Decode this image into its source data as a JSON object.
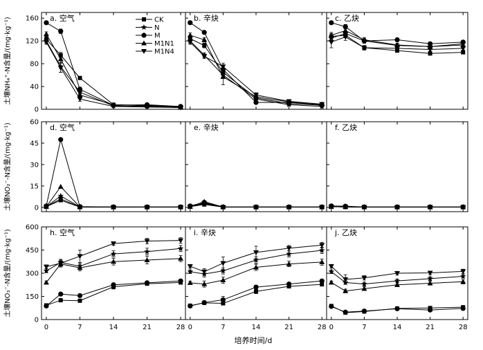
{
  "figure": {
    "xlabel": "培养时间/d",
    "x_ticks": [
      0,
      7,
      14,
      21,
      28
    ]
  },
  "legend": {
    "entries": [
      {
        "key": "CK",
        "label": "CK",
        "marker": "square"
      },
      {
        "key": "N",
        "label": "N",
        "marker": "star"
      },
      {
        "key": "M",
        "label": "M",
        "marker": "circle"
      },
      {
        "key": "M1N1",
        "label": "M1N1",
        "marker": "triangle-up"
      },
      {
        "key": "M1N4",
        "label": "M1N4",
        "marker": "triangle-down"
      }
    ]
  },
  "rows": [
    {
      "ylabel": "土壤NH₄⁺-N含量/(mg·kg⁻¹)",
      "y_ticks": [
        0,
        40,
        80,
        120,
        160
      ],
      "ylim": [
        0,
        170
      ]
    },
    {
      "ylabel": "土壤NO₂⁻-N含量/(mg·kg⁻¹)",
      "y_ticks": [
        0,
        15,
        30,
        45,
        60
      ],
      "ylim": [
        -3,
        60
      ]
    },
    {
      "ylabel": "土壤NO₃⁻-N含量/(mg·kg⁻¹)",
      "y_ticks": [
        0,
        150,
        300,
        450,
        600
      ],
      "ylim": [
        0,
        600
      ]
    }
  ],
  "chart_data": [
    {
      "type": "line",
      "panel": "a",
      "title": "a. 空气",
      "row": 0,
      "col": 0,
      "x": [
        0,
        3,
        7,
        14,
        21,
        28
      ],
      "ylim": [
        0,
        170
      ],
      "series": [
        {
          "name": "CK",
          "values": [
            123,
            95,
            55,
            8,
            6,
            3
          ],
          "err": [
            4,
            5,
            2,
            1,
            1,
            1
          ]
        },
        {
          "name": "N",
          "values": [
            120,
            75,
            30,
            6,
            5,
            3
          ],
          "err": [
            4,
            10,
            8,
            1,
            1,
            1
          ]
        },
        {
          "name": "M",
          "values": [
            152,
            137,
            35,
            7,
            8,
            5
          ],
          "err": [
            3,
            4,
            4,
            1,
            1,
            1
          ]
        },
        {
          "name": "M1N1",
          "values": [
            132,
            88,
            25,
            8,
            7,
            4
          ],
          "err": [
            4,
            6,
            4,
            1,
            1,
            1
          ]
        },
        {
          "name": "M1N4",
          "values": [
            118,
            73,
            18,
            5,
            4,
            3
          ],
          "err": [
            4,
            8,
            4,
            1,
            1,
            1
          ]
        }
      ]
    },
    {
      "type": "line",
      "panel": "b",
      "title": "b. 辛炔",
      "row": 0,
      "col": 1,
      "x": [
        0,
        3,
        7,
        14,
        21,
        28
      ],
      "ylim": [
        0,
        170
      ],
      "series": [
        {
          "name": "CK",
          "values": [
            124,
            112,
            65,
            20,
            10,
            7
          ],
          "err": [
            4,
            4,
            6,
            2,
            1,
            1
          ]
        },
        {
          "name": "N",
          "values": [
            120,
            95,
            60,
            18,
            8,
            5
          ],
          "err": [
            4,
            4,
            6,
            2,
            1,
            1
          ]
        },
        {
          "name": "M",
          "values": [
            152,
            135,
            70,
            12,
            12,
            8
          ],
          "err": [
            3,
            3,
            6,
            2,
            2,
            1
          ]
        },
        {
          "name": "M1N1",
          "values": [
            130,
            122,
            57,
            22,
            13,
            9
          ],
          "err": [
            4,
            4,
            14,
            4,
            2,
            1
          ]
        },
        {
          "name": "M1N4",
          "values": [
            118,
            93,
            75,
            25,
            14,
            9
          ],
          "err": [
            4,
            4,
            6,
            4,
            2,
            1
          ]
        }
      ]
    },
    {
      "type": "line",
      "panel": "c",
      "title": "c. 乙炔",
      "row": 0,
      "col": 2,
      "x": [
        0,
        3,
        7,
        14,
        21,
        28
      ],
      "ylim": [
        0,
        170
      ],
      "series": [
        {
          "name": "CK",
          "values": [
            128,
            130,
            108,
            103,
            98,
            100
          ],
          "err": [
            5,
            4,
            3,
            3,
            3,
            3
          ]
        },
        {
          "name": "N",
          "values": [
            125,
            133,
            120,
            112,
            110,
            115
          ],
          "err": [
            5,
            4,
            4,
            3,
            3,
            3
          ]
        },
        {
          "name": "M",
          "values": [
            152,
            145,
            120,
            122,
            115,
            118
          ],
          "err": [
            3,
            4,
            4,
            3,
            3,
            3
          ]
        },
        {
          "name": "M1N1",
          "values": [
            130,
            138,
            122,
            113,
            110,
            113
          ],
          "err": [
            5,
            4,
            4,
            3,
            3,
            3
          ]
        },
        {
          "name": "M1N4",
          "values": [
            118,
            127,
            108,
            107,
            105,
            107
          ],
          "err": [
            10,
            6,
            4,
            3,
            3,
            3
          ]
        }
      ]
    },
    {
      "type": "line",
      "panel": "d",
      "title": "d. 空气",
      "row": 1,
      "col": 0,
      "x": [
        0,
        3,
        7,
        14,
        21,
        28
      ],
      "ylim": [
        -3,
        60
      ],
      "series": [
        {
          "name": "CK",
          "values": [
            0.5,
            5,
            0.2,
            0.2,
            0.2,
            0.2
          ],
          "err": [
            0.3,
            0.5,
            0.2,
            0.1,
            0.1,
            0.1
          ]
        },
        {
          "name": "N",
          "values": [
            0.5,
            8,
            0.3,
            0.2,
            0.2,
            0.2
          ],
          "err": [
            0.3,
            0.5,
            0.2,
            0.1,
            0.1,
            0.1
          ]
        },
        {
          "name": "M",
          "values": [
            1,
            47.5,
            0.5,
            0.3,
            0.3,
            0.3
          ],
          "err": [
            0.5,
            0.7,
            0.2,
            0.1,
            0.1,
            0.1
          ]
        },
        {
          "name": "M1N1",
          "values": [
            0.5,
            14.5,
            0.3,
            0.2,
            0.2,
            0.2
          ],
          "err": [
            0.3,
            0.5,
            0.2,
            0.1,
            0.1,
            0.1
          ]
        },
        {
          "name": "M1N4",
          "values": [
            0.5,
            6,
            0.2,
            0.2,
            0.2,
            0.2
          ],
          "err": [
            0.3,
            0.5,
            0.2,
            0.1,
            0.1,
            0.1
          ]
        }
      ]
    },
    {
      "type": "line",
      "panel": "e",
      "title": "e. 辛炔",
      "row": 1,
      "col": 1,
      "x": [
        0,
        3,
        7,
        14,
        21,
        28
      ],
      "ylim": [
        -3,
        60
      ],
      "series": [
        {
          "name": "CK",
          "values": [
            0.5,
            2,
            0.2,
            0.2,
            0.2,
            0.2
          ],
          "err": [
            0.3,
            0.5,
            0.2,
            0.1,
            0.1,
            0.1
          ]
        },
        {
          "name": "N",
          "values": [
            0.5,
            2.5,
            0.2,
            0.2,
            0.2,
            0.2
          ],
          "err": [
            0.3,
            0.5,
            0.2,
            0.1,
            0.1,
            0.1
          ]
        },
        {
          "name": "M",
          "values": [
            1,
            3.5,
            0.3,
            0.3,
            0.3,
            0.3
          ],
          "err": [
            0.5,
            0.5,
            0.2,
            0.1,
            0.1,
            0.1
          ]
        },
        {
          "name": "M1N1",
          "values": [
            0.5,
            4,
            0.3,
            0.2,
            0.2,
            0.2
          ],
          "err": [
            0.3,
            0.5,
            0.2,
            0.1,
            0.1,
            0.1
          ]
        },
        {
          "name": "M1N4",
          "values": [
            0.5,
            3,
            0.2,
            0.2,
            0.2,
            0.2
          ],
          "err": [
            0.3,
            0.5,
            0.2,
            0.1,
            0.1,
            0.1
          ]
        }
      ]
    },
    {
      "type": "line",
      "panel": "f",
      "title": "f. 乙炔",
      "row": 1,
      "col": 2,
      "x": [
        0,
        3,
        7,
        14,
        21,
        28
      ],
      "ylim": [
        -3,
        60
      ],
      "series": [
        {
          "name": "CK",
          "values": [
            0.5,
            0.3,
            0.2,
            0.2,
            0.2,
            0.2
          ],
          "err": [
            0.3,
            0.2,
            0.1,
            0.1,
            0.1,
            0.1
          ]
        },
        {
          "name": "N",
          "values": [
            0.5,
            0.3,
            0.2,
            0.2,
            0.2,
            0.2
          ],
          "err": [
            0.3,
            0.2,
            0.1,
            0.1,
            0.1,
            0.1
          ]
        },
        {
          "name": "M",
          "values": [
            1,
            0.8,
            0.3,
            0.3,
            0.3,
            0.3
          ],
          "err": [
            0.4,
            0.3,
            0.1,
            0.1,
            0.1,
            0.1
          ]
        },
        {
          "name": "M1N1",
          "values": [
            0.5,
            0.4,
            0.2,
            0.2,
            0.2,
            0.2
          ],
          "err": [
            0.3,
            0.2,
            0.1,
            0.1,
            0.1,
            0.1
          ]
        },
        {
          "name": "M1N4",
          "values": [
            0.5,
            0.3,
            0.2,
            0.2,
            0.2,
            0.2
          ],
          "err": [
            0.3,
            0.2,
            0.1,
            0.1,
            0.1,
            0.1
          ]
        }
      ]
    },
    {
      "type": "line",
      "panel": "h",
      "title": "h. 空气",
      "row": 2,
      "col": 0,
      "x": [
        0,
        3,
        7,
        14,
        21,
        28
      ],
      "ylim": [
        0,
        600
      ],
      "series": [
        {
          "name": "CK",
          "values": [
            92,
            125,
            122,
            212,
            232,
            240
          ],
          "err": [
            6,
            8,
            8,
            14,
            10,
            10
          ]
        },
        {
          "name": "N",
          "values": [
            315,
            370,
            345,
            425,
            440,
            460
          ],
          "err": [
            12,
            20,
            20,
            20,
            22,
            20
          ]
        },
        {
          "name": "M",
          "values": [
            88,
            165,
            155,
            225,
            238,
            250
          ],
          "err": [
            6,
            10,
            10,
            12,
            10,
            10
          ]
        },
        {
          "name": "M1N1",
          "values": [
            240,
            360,
            335,
            375,
            385,
            395
          ],
          "err": [
            10,
            20,
            20,
            22,
            24,
            20
          ]
        },
        {
          "name": "M1N4",
          "values": [
            342,
            365,
            410,
            492,
            508,
            512
          ],
          "err": [
            12,
            20,
            40,
            12,
            18,
            18
          ]
        }
      ]
    },
    {
      "type": "line",
      "panel": "i",
      "title": "i. 辛炔",
      "row": 2,
      "col": 1,
      "x": [
        0,
        3,
        7,
        14,
        21,
        28
      ],
      "ylim": [
        0,
        600
      ],
      "series": [
        {
          "name": "CK",
          "values": [
            90,
            108,
            105,
            182,
            215,
            228
          ],
          "err": [
            6,
            8,
            8,
            14,
            10,
            10
          ]
        },
        {
          "name": "N",
          "values": [
            310,
            295,
            315,
            385,
            425,
            448
          ],
          "err": [
            12,
            20,
            20,
            22,
            20,
            20
          ]
        },
        {
          "name": "M",
          "values": [
            88,
            110,
            128,
            210,
            230,
            250
          ],
          "err": [
            6,
            10,
            22,
            12,
            10,
            10
          ]
        },
        {
          "name": "M1N1",
          "values": [
            238,
            230,
            255,
            338,
            360,
            372
          ],
          "err": [
            10,
            20,
            20,
            20,
            18,
            20
          ]
        },
        {
          "name": "M1N4",
          "values": [
            345,
            310,
            365,
            435,
            462,
            482
          ],
          "err": [
            12,
            20,
            40,
            40,
            18,
            18
          ]
        }
      ]
    },
    {
      "type": "line",
      "panel": "j",
      "title": "j. 乙炔",
      "row": 2,
      "col": 2,
      "x": [
        0,
        3,
        7,
        14,
        21,
        28
      ],
      "ylim": [
        0,
        600
      ],
      "series": [
        {
          "name": "CK",
          "values": [
            88,
            45,
            52,
            72,
            75,
            80
          ],
          "err": [
            6,
            5,
            5,
            6,
            6,
            6
          ]
        },
        {
          "name": "N",
          "values": [
            310,
            240,
            230,
            250,
            265,
            280
          ],
          "err": [
            12,
            12,
            12,
            12,
            12,
            12
          ]
        },
        {
          "name": "M",
          "values": [
            85,
            48,
            55,
            70,
            62,
            72
          ],
          "err": [
            6,
            5,
            5,
            6,
            6,
            6
          ]
        },
        {
          "name": "M1N1",
          "values": [
            240,
            185,
            200,
            225,
            235,
            245
          ],
          "err": [
            10,
            12,
            12,
            12,
            12,
            14
          ]
        },
        {
          "name": "M1N4",
          "values": [
            345,
            260,
            270,
            300,
            302,
            312
          ],
          "err": [
            12,
            30,
            14,
            12,
            12,
            14
          ]
        }
      ]
    }
  ]
}
